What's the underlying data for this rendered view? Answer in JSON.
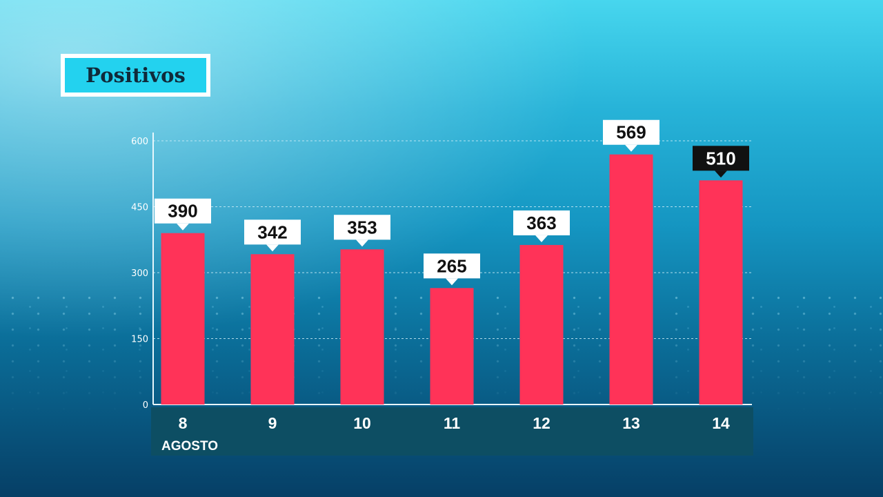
{
  "title": "Positivos",
  "chart_data": {
    "type": "bar",
    "title": "Positivos",
    "categories": [
      "8",
      "9",
      "10",
      "11",
      "12",
      "13",
      "14"
    ],
    "values": [
      390,
      342,
      353,
      265,
      363,
      569,
      510
    ],
    "x_group_label": "AGOSTO",
    "yticks": [
      "0",
      "150",
      "300",
      "450",
      "600"
    ],
    "ylim": [
      0,
      600
    ],
    "grid": true,
    "highlight_index": 6,
    "colors": {
      "bar": "#ff3358",
      "label_bg": "#ffffff",
      "label_text": "#111111",
      "highlight_bg": "#111111",
      "highlight_text": "#ffffff",
      "axis": "#e8f7fc",
      "grid": "#cfeef8",
      "xband": "#0d4e63",
      "xtext": "#ffffff",
      "ytick_text": "#ffffff"
    }
  }
}
